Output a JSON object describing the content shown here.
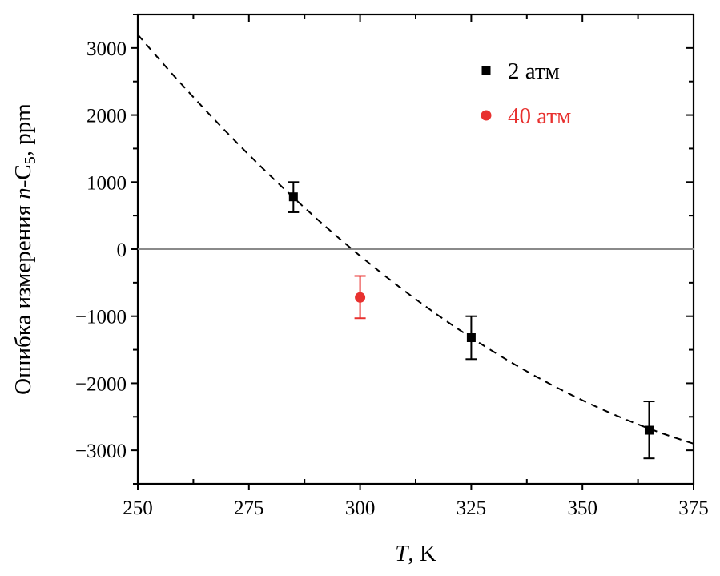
{
  "chart_data": {
    "type": "scatter",
    "xlabel": {
      "italic": "T",
      "rest": ", K"
    },
    "ylabel": {
      "prefix": "Ошибка измерения ",
      "italic": "n",
      "mid": "-C",
      "sub": "5",
      "suffix": ", ppm"
    },
    "xlim": [
      250,
      375
    ],
    "ylim": [
      -3500,
      3500
    ],
    "x_ticks": [
      "250",
      "275",
      "300",
      "325",
      "350",
      "375"
    ],
    "x_tick_values": [
      250,
      275,
      300,
      325,
      350,
      375
    ],
    "y_ticks": [
      "3000",
      "2000",
      "1000",
      "0",
      "−1000",
      "−2000",
      "−3000"
    ],
    "y_tick_values": [
      3000,
      2000,
      1000,
      0,
      -1000,
      -2000,
      -3000
    ],
    "grid": false,
    "legend_position": "top-right",
    "zero_line": true,
    "series": [
      {
        "name": "2 атм",
        "marker": "square",
        "color": "#000000",
        "points": [
          {
            "x": 285,
            "y": 780,
            "err_high": 1000,
            "err_low": 550
          },
          {
            "x": 325,
            "y": -1320,
            "err_high": -1000,
            "err_low": -1640
          },
          {
            "x": 365,
            "y": -2700,
            "err_high": -2270,
            "err_low": -3120
          }
        ]
      },
      {
        "name": "40 атм",
        "marker": "circle",
        "color": "#e8312f",
        "points": [
          {
            "x": 300,
            "y": -720,
            "err_high": -400,
            "err_low": -1030
          }
        ]
      }
    ],
    "fit_curve": {
      "style": "dashed",
      "color": "#000000",
      "x_range": [
        250,
        375
      ],
      "y_at_250": 3200,
      "y_at_300": -100,
      "y_at_375": -2900
    }
  }
}
